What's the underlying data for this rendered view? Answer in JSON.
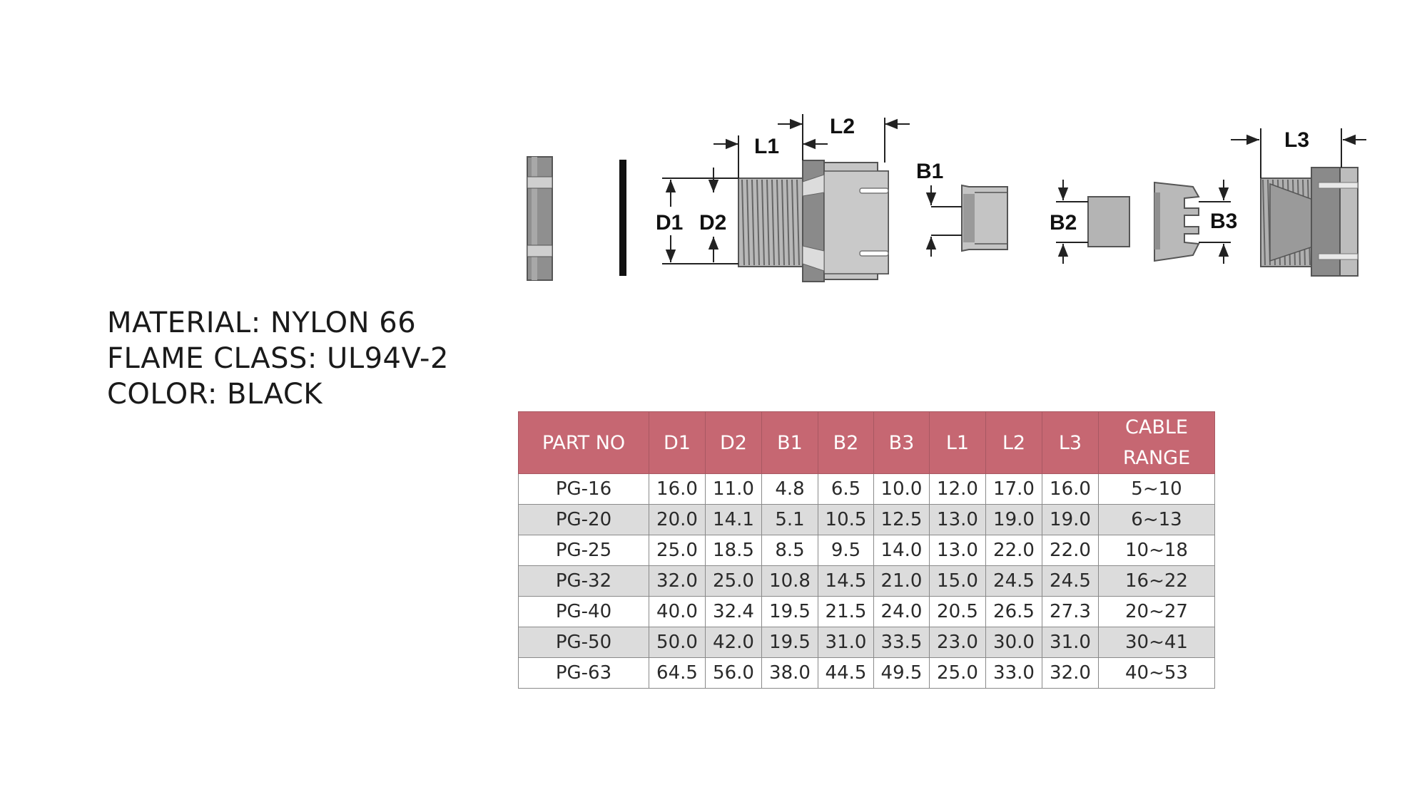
{
  "specs": {
    "material": "MATERIAL: NYLON 66",
    "flame_class": "FLAME CLASS: UL94V-2",
    "color": "COLOR: BLACK"
  },
  "diagram_labels": {
    "l1": "L1",
    "l2": "L2",
    "l3": "L3",
    "d1": "D1",
    "d2": "D2",
    "b1": "B1",
    "b2": "B2",
    "b3": "B3"
  },
  "table": {
    "headers": [
      "PART NO",
      "D1",
      "D2",
      "B1",
      "B2",
      "B3",
      "L1",
      "L2",
      "L3"
    ],
    "cable_header_line1": "CABLE",
    "cable_header_line2": "RANGE",
    "rows": [
      [
        "PG-16",
        "16.0",
        "11.0",
        "4.8",
        "6.5",
        "10.0",
        "12.0",
        "17.0",
        "16.0",
        "5~10"
      ],
      [
        "PG-20",
        "20.0",
        "14.1",
        "5.1",
        "10.5",
        "12.5",
        "13.0",
        "19.0",
        "19.0",
        "6~13"
      ],
      [
        "PG-25",
        "25.0",
        "18.5",
        "8.5",
        "9.5",
        "14.0",
        "13.0",
        "22.0",
        "22.0",
        "10~18"
      ],
      [
        "PG-32",
        "32.0",
        "25.0",
        "10.8",
        "14.5",
        "21.0",
        "15.0",
        "24.5",
        "24.5",
        "16~22"
      ],
      [
        "PG-40",
        "40.0",
        "32.4",
        "19.5",
        "21.5",
        "24.0",
        "20.5",
        "26.5",
        "27.3",
        "20~27"
      ],
      [
        "PG-50",
        "50.0",
        "42.0",
        "19.5",
        "31.0",
        "33.5",
        "23.0",
        "30.0",
        "31.0",
        "30~41"
      ],
      [
        "PG-63",
        "64.5",
        "56.0",
        "38.0",
        "44.5",
        "49.5",
        "25.0",
        "33.0",
        "32.0",
        "40~53"
      ]
    ]
  },
  "colors": {
    "header_bg": "#c66772",
    "header_text": "#ffffff",
    "row_alt_bg": "#dcdcdc",
    "part_gray": "#b5b5b5",
    "part_dark": "#7d7d7d"
  }
}
